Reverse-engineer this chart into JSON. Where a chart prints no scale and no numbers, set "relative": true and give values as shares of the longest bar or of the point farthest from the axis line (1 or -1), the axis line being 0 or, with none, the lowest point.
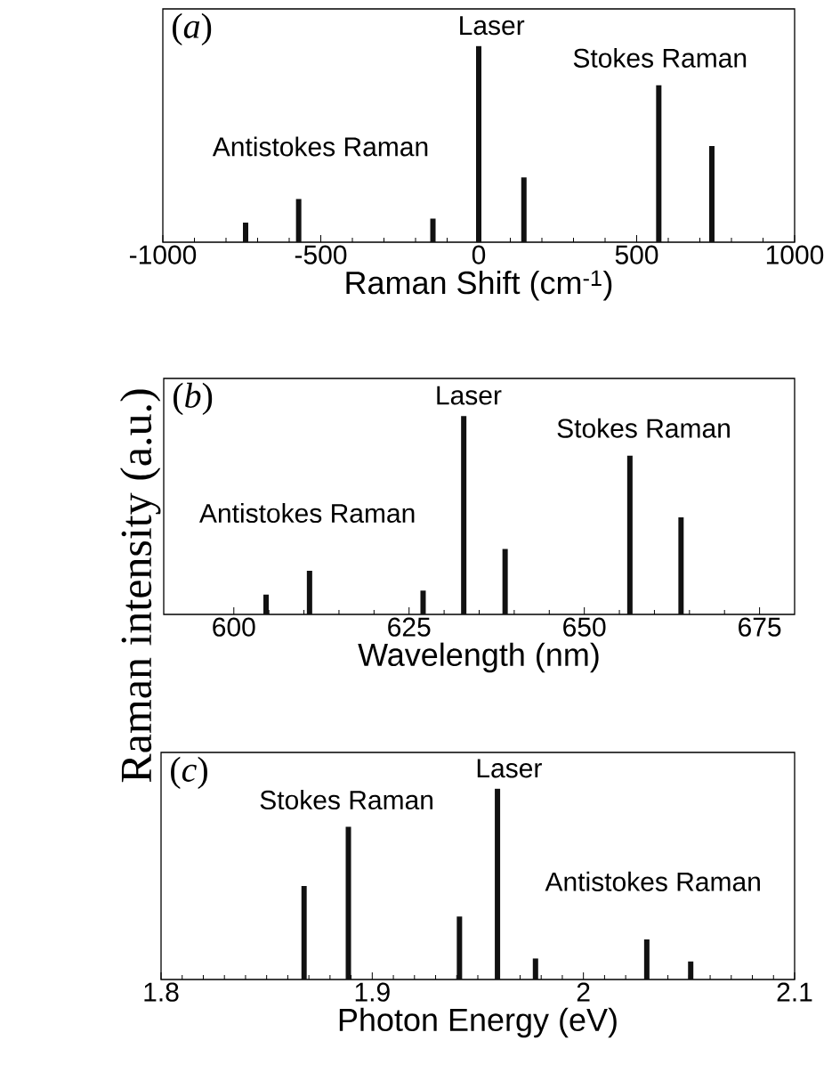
{
  "chart_data": [
    {
      "type": "bar",
      "relative": true,
      "color": "#111111",
      "x": [
        -738,
        -570,
        -145,
        0,
        143,
        570,
        738
      ],
      "values": [
        0.1,
        0.22,
        0.12,
        1,
        0.33,
        0.8,
        0.49
      ],
      "xlim": [
        -1000,
        1000
      ],
      "xticks": [
        -1000,
        -500,
        0,
        500,
        1000
      ],
      "xlabel": "Raman Shift (cm$^{-1}$)",
      "annotations": [
        "(*a*)",
        "Laser",
        "Stokes Raman",
        "Antistokes Raman"
      ]
    },
    {
      "type": "bar",
      "relative": true,
      "color": "#111111",
      "x": [
        604.6,
        610.8,
        627.0,
        632.8,
        638.7,
        656.5,
        663.8
      ],
      "values": [
        0.1,
        0.22,
        0.12,
        1,
        0.33,
        0.8,
        0.49
      ],
      "xlim": [
        590,
        680
      ],
      "xticks": [
        600,
        625,
        650,
        675
      ],
      "xlabel": "Wavelength (nm)",
      "ylabel": "Raman intensity (a.u.)",
      "annotations": [
        "(*b*)",
        "Laser",
        "Stokes Raman",
        "Antistokes Raman"
      ]
    },
    {
      "type": "bar",
      "relative": true,
      "color": "#111111",
      "x": [
        1.8677,
        1.8887,
        1.9413,
        1.9593,
        1.9773,
        2.03,
        2.0508
      ],
      "values": [
        0.49,
        0.8,
        0.33,
        1,
        0.11,
        0.21,
        0.095
      ],
      "xlim": [
        1.8,
        2.1
      ],
      "xticks": [
        1.8,
        1.9,
        2,
        2.1
      ],
      "xlabel": "Photon Energy (eV)",
      "annotations": [
        "(*c*)",
        "Laser",
        "Stokes Raman",
        "Antistokes Raman"
      ]
    }
  ]
}
